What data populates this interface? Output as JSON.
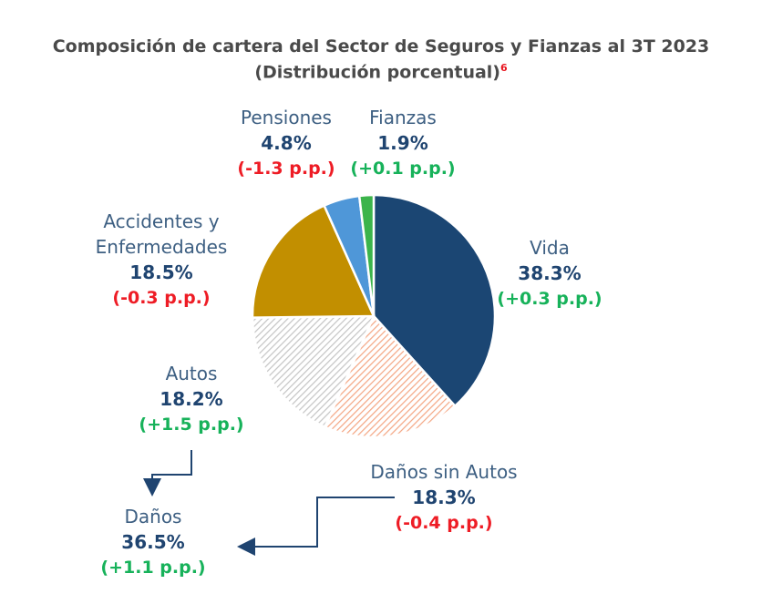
{
  "chart_data": {
    "type": "pie",
    "title": "Composición de cartera del Sector de Seguros y Fianzas al 3T 2023",
    "subtitle": "(Distribución porcentual)",
    "footnote_marker": "6",
    "slices": [
      {
        "label": "Vida",
        "value": 38.3,
        "value_label": "38.3%",
        "change": "(+0.3 p.p.)",
        "change_sign": "pos",
        "color": "#1b4673",
        "pattern": "solid"
      },
      {
        "label": "Daños sin Autos",
        "value": 18.3,
        "value_label": "18.3%",
        "change": "(-0.4 p.p.)",
        "change_sign": "neg",
        "color": "#f4a582",
        "pattern": "hatch"
      },
      {
        "label": "Autos",
        "value": 18.2,
        "value_label": "18.2%",
        "change": "(+1.5 p.p.)",
        "change_sign": "pos",
        "color": "#c4c4c4",
        "pattern": "hatch"
      },
      {
        "label": "Accidentes y Enfermedades",
        "label_lines": [
          "Accidentes y",
          "Enfermedades"
        ],
        "value": 18.5,
        "value_label": "18.5%",
        "change": "(-0.3 p.p.)",
        "change_sign": "neg",
        "color": "#c28f00",
        "pattern": "solid"
      },
      {
        "label": "Pensiones",
        "value": 4.8,
        "value_label": "4.8%",
        "change": "(-1.3 p.p.)",
        "change_sign": "neg",
        "color": "#4f97d8",
        "pattern": "solid"
      },
      {
        "label": "Fianzas",
        "value": 1.9,
        "value_label": "1.9%",
        "change": "(+0.1 p.p.)",
        "change_sign": "pos",
        "color": "#3cb44b",
        "pattern": "solid"
      }
    ],
    "aggregate": {
      "label": "Daños",
      "value": 36.5,
      "value_label": "36.5%",
      "change": "(+1.1 p.p.)",
      "change_sign": "pos"
    }
  }
}
